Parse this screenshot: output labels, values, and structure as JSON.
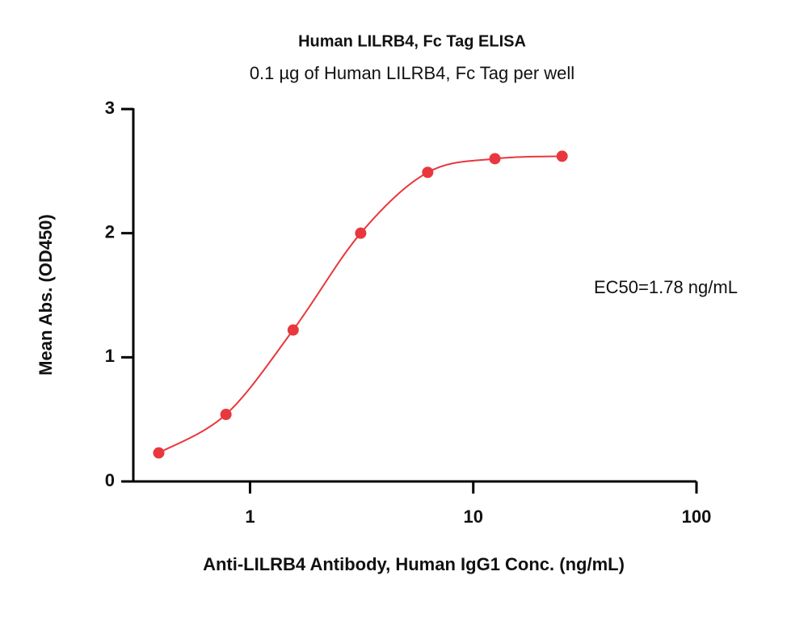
{
  "chart_data": {
    "type": "scatter",
    "title": "Human LILRB4, Fc Tag ELISA",
    "subtitle": "0.1 µg of Human LILRB4, Fc Tag per well",
    "xlabel": "Anti-LILRB4 Antibody, Human IgG1 Conc. (ng/mL)",
    "ylabel": "Mean Abs. (OD450)",
    "annotation": "EC50=1.78 ng/mL",
    "xscale": "log",
    "xlim": [
      0.3,
      100
    ],
    "xticks": [
      1,
      10,
      100
    ],
    "ylim": [
      0,
      3
    ],
    "yticks": [
      0,
      1,
      2,
      3
    ],
    "grid": false,
    "series": [
      {
        "color": "#e8383d",
        "x": [
          0.39,
          0.78,
          1.56,
          3.13,
          6.25,
          12.5,
          25
        ],
        "values": [
          0.23,
          0.54,
          1.22,
          2.0,
          2.49,
          2.6,
          2.62
        ]
      }
    ]
  }
}
